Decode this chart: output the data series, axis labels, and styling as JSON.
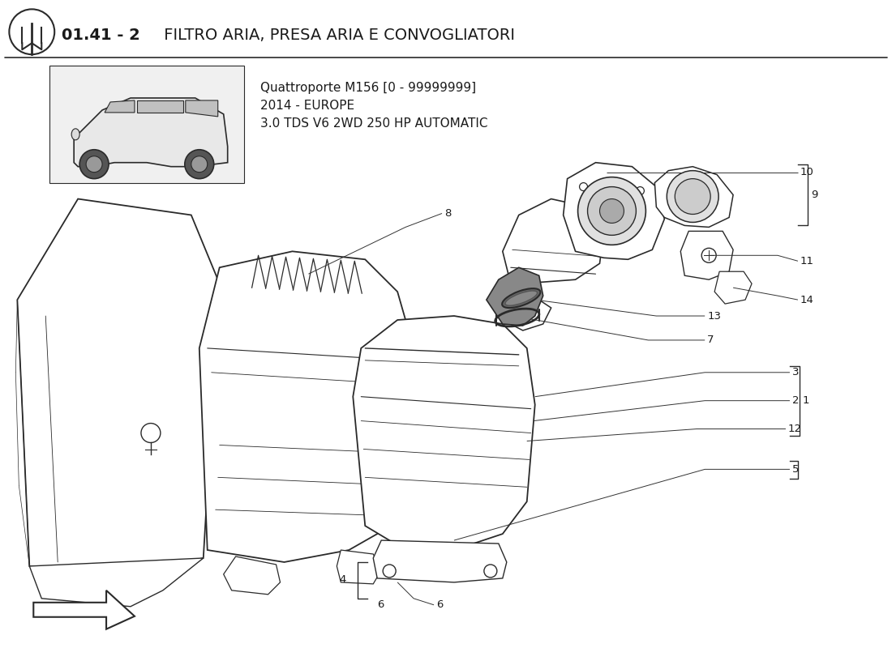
{
  "title_bold": "01.41 - 2",
  "title_rest": " FILTRO ARIA, PRESA ARIA E CONVOGLIATORI",
  "subtitle_line1": "Quattroporte M156 [0 - 99999999]",
  "subtitle_line2": "2014 - EUROPE",
  "subtitle_line3": "3.0 TDS V6 2WD 250 HP AUTOMATIC",
  "bg_color": "#ffffff",
  "text_color": "#1a1a1a",
  "line_color": "#2a2a2a",
  "title_fontsize": 14,
  "subtitle_fontsize": 11,
  "label_fontsize": 9.5
}
